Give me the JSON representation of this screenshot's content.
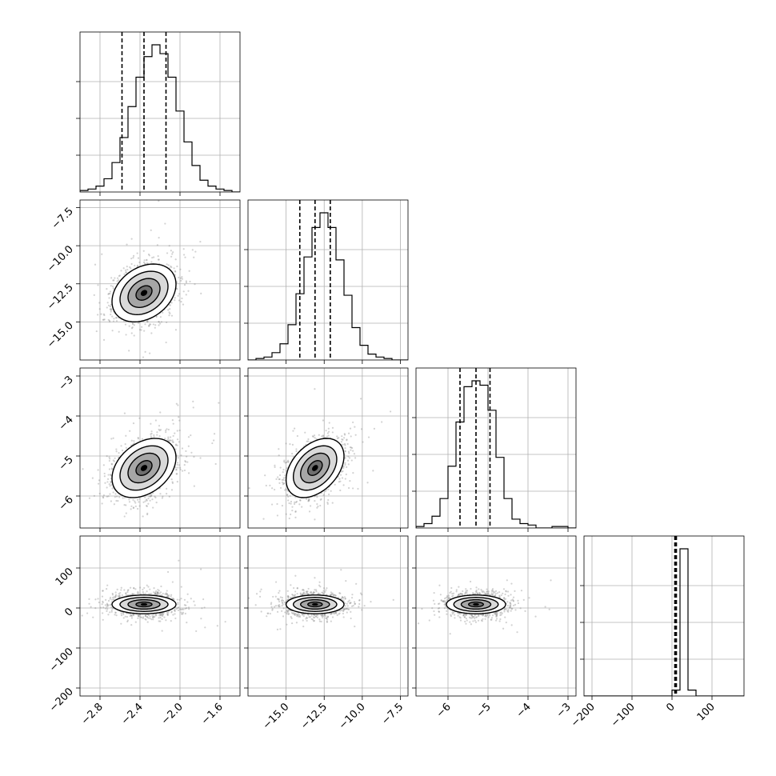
{
  "chart_data": {
    "type": "corner",
    "grid": true,
    "hist_fill": "#ffffff",
    "scatter_color": "#7f7f7f",
    "contour_colors": [
      "#ffffff",
      "#d9d9d9",
      "#a6a6a6",
      "#6e6e6e"
    ],
    "params": [
      {
        "range": [
          -3.0,
          -1.4
        ],
        "ticks": [
          -2.8,
          -2.4,
          -2.0,
          -1.6
        ],
        "tick_labels": [
          "−2.8",
          "−2.4",
          "−2.0",
          "−1.6"
        ],
        "quantiles": [
          -2.58,
          -2.36,
          -2.14
        ],
        "mean": -2.36,
        "sd": 0.16
      },
      {
        "range": [
          -17.5,
          -7.0
        ],
        "ticks": [
          -15.0,
          -12.5,
          -10.0,
          -7.5
        ],
        "tick_labels": [
          "−15.0",
          "−12.5",
          "−10.0",
          "−7.5"
        ],
        "quantiles": [
          -14.1,
          -13.1,
          -12.1
        ],
        "mean": -13.1,
        "sd": 0.95
      },
      {
        "range": [
          -6.8,
          -2.8
        ],
        "ticks": [
          -6,
          -5,
          -4,
          -3
        ],
        "tick_labels": [
          "−6",
          "−5",
          "−4",
          "−3"
        ],
        "quantiles": [
          -5.7,
          -5.3,
          -4.95
        ],
        "mean": -5.3,
        "sd": 0.37
      },
      {
        "range": [
          -220,
          180
        ],
        "ticks": [
          -200,
          -100,
          0,
          100
        ],
        "tick_labels": [
          "−200",
          "−100",
          "0",
          "100"
        ],
        "quantiles": [
          7,
          9,
          11
        ],
        "mean": 9,
        "sd": 9
      }
    ],
    "row_ticks": [
      null,
      [
        "−7.5",
        "−10.0",
        "−12.5",
        "−15.0"
      ],
      [
        "−3",
        "−4",
        "−5",
        "−6"
      ],
      [
        "100",
        "0",
        "−100",
        "−200"
      ]
    ],
    "histograms": [
      {
        "bins": 20,
        "counts": [
          0.01,
          0.02,
          0.04,
          0.09,
          0.2,
          0.37,
          0.58,
          0.78,
          0.92,
          1.0,
          0.94,
          0.78,
          0.55,
          0.34,
          0.18,
          0.08,
          0.04,
          0.02,
          0.01,
          0.0
        ]
      },
      {
        "bins": 20,
        "counts": [
          0.0,
          0.01,
          0.02,
          0.05,
          0.11,
          0.24,
          0.45,
          0.7,
          0.9,
          1.0,
          0.9,
          0.68,
          0.44,
          0.22,
          0.1,
          0.04,
          0.02,
          0.01,
          0.0,
          0.0
        ]
      },
      {
        "bins": 20,
        "counts": [
          0.01,
          0.03,
          0.08,
          0.2,
          0.42,
          0.72,
          0.96,
          1.0,
          0.97,
          0.8,
          0.48,
          0.2,
          0.06,
          0.03,
          0.02,
          0.0,
          0.0,
          0.01,
          0.01,
          0.0
        ]
      },
      {
        "bins": 20,
        "counts": [
          0.0,
          0.0,
          0.0,
          0.0,
          0.0,
          0.0,
          0.0,
          0.0,
          0.0,
          0.0,
          0.0,
          0.04,
          1.0,
          0.04,
          0.0,
          0.0,
          0.0,
          0.0,
          0.0,
          0.0
        ]
      }
    ],
    "correlations": {
      "1-0": 0.3,
      "2-0": 0.35,
      "2-1": 0.4,
      "3-0": 0.0,
      "3-1": 0.0,
      "3-2": 0.0
    }
  }
}
